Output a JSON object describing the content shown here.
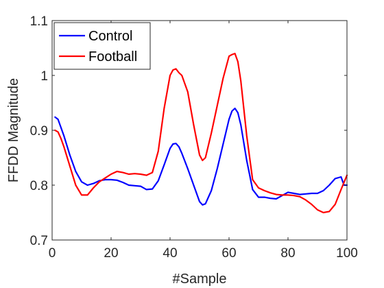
{
  "chart_data": {
    "type": "line",
    "xlabel": "#Sample",
    "ylabel": "FFDD Magnitude",
    "xlim": [
      0,
      100
    ],
    "ylim": [
      0.7,
      1.1
    ],
    "xticks": [
      "0",
      "20",
      "40",
      "60",
      "80",
      "100"
    ],
    "yticks": [
      "0.7",
      "0.8",
      "0.9",
      "1",
      "1.1"
    ],
    "grid": false,
    "legend_position": "top-left",
    "series": [
      {
        "name": "Control",
        "color": "#0000ff",
        "x": [
          1,
          2,
          3,
          4,
          6,
          8,
          10,
          12,
          14,
          16,
          18,
          20,
          22,
          24,
          26,
          28,
          30,
          32,
          34,
          36,
          38,
          40,
          41,
          42,
          43,
          44,
          46,
          48,
          50,
          51,
          52,
          54,
          56,
          58,
          60,
          61,
          62,
          63,
          64,
          66,
          68,
          70,
          72,
          74,
          76,
          78,
          80,
          82,
          84,
          86,
          88,
          90,
          92,
          94,
          96,
          98,
          99,
          100
        ],
        "y": [
          0.924,
          0.92,
          0.905,
          0.89,
          0.855,
          0.825,
          0.806,
          0.8,
          0.803,
          0.808,
          0.81,
          0.81,
          0.809,
          0.805,
          0.8,
          0.799,
          0.798,
          0.792,
          0.793,
          0.808,
          0.837,
          0.867,
          0.875,
          0.876,
          0.87,
          0.858,
          0.83,
          0.8,
          0.77,
          0.764,
          0.766,
          0.79,
          0.83,
          0.875,
          0.92,
          0.935,
          0.94,
          0.932,
          0.91,
          0.845,
          0.792,
          0.778,
          0.778,
          0.776,
          0.775,
          0.781,
          0.787,
          0.785,
          0.783,
          0.784,
          0.785,
          0.785,
          0.79,
          0.8,
          0.812,
          0.815,
          0.8,
          0.8
        ]
      },
      {
        "name": "Football",
        "color": "#ff0000",
        "x": [
          1,
          2,
          3,
          4,
          6,
          8,
          10,
          12,
          14,
          16,
          18,
          20,
          22,
          24,
          26,
          28,
          30,
          32,
          34,
          36,
          38,
          40,
          41,
          42,
          43,
          44,
          46,
          48,
          50,
          51,
          52,
          54,
          56,
          58,
          60,
          61,
          62,
          63,
          64,
          66,
          68,
          70,
          72,
          74,
          76,
          78,
          80,
          82,
          84,
          86,
          88,
          90,
          92,
          94,
          96,
          98,
          99,
          100
        ],
        "y": [
          0.9,
          0.897,
          0.885,
          0.87,
          0.835,
          0.8,
          0.782,
          0.782,
          0.795,
          0.806,
          0.813,
          0.82,
          0.825,
          0.823,
          0.82,
          0.821,
          0.82,
          0.818,
          0.823,
          0.862,
          0.94,
          1.0,
          1.01,
          1.012,
          1.005,
          1.0,
          0.97,
          0.91,
          0.855,
          0.845,
          0.85,
          0.895,
          0.945,
          0.995,
          1.035,
          1.038,
          1.04,
          1.025,
          0.99,
          0.89,
          0.81,
          0.795,
          0.79,
          0.786,
          0.783,
          0.782,
          0.782,
          0.781,
          0.779,
          0.773,
          0.765,
          0.755,
          0.75,
          0.752,
          0.765,
          0.792,
          0.805,
          0.818
        ]
      }
    ]
  }
}
